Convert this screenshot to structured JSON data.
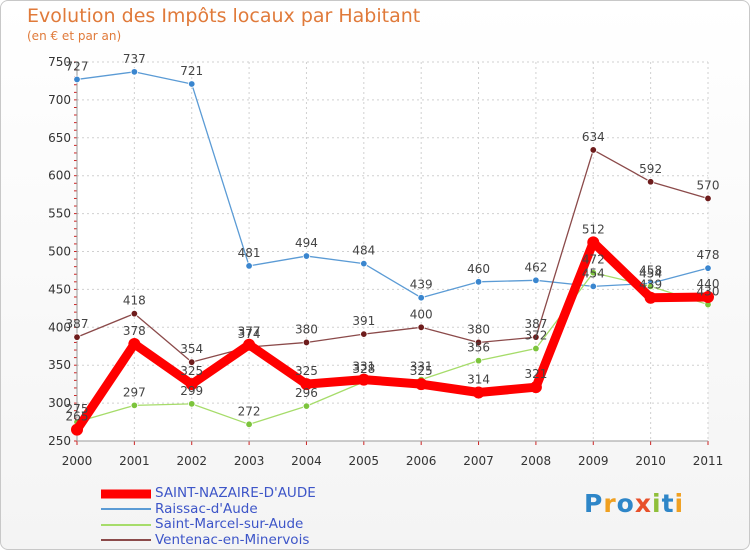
{
  "chart_data": {
    "type": "line",
    "title": "Evolution des Impôts locaux par Habitant",
    "subtitle": "(en € et par an)",
    "x": [
      "2000",
      "2001",
      "2002",
      "2003",
      "2004",
      "2005",
      "2006",
      "2007",
      "2008",
      "2009",
      "2010",
      "2011"
    ],
    "ylim": [
      250,
      750
    ],
    "yticks": [
      250,
      300,
      350,
      400,
      450,
      500,
      550,
      600,
      650,
      700,
      750
    ],
    "grid": true,
    "series": [
      {
        "name": "Raissac-d'Aude",
        "color": "#5b9bd5",
        "marker": "#3a86cf",
        "values": [
          727,
          737,
          721,
          481,
          494,
          484,
          439,
          460,
          462,
          454,
          458,
          478
        ]
      },
      {
        "name": "Saint-Marcel-sur-Aude",
        "color": "#a6dc6a",
        "marker": "#7cc43c",
        "values": [
          275,
          297,
          299,
          272,
          296,
          328,
          331,
          356,
          372,
          472,
          454,
          430
        ]
      },
      {
        "name": "Ventenac-en-Minervois",
        "color": "#8b4a4a",
        "marker": "#6e1c1c",
        "values": [
          387,
          418,
          354,
          374,
          380,
          391,
          400,
          380,
          387,
          634,
          592,
          570
        ]
      },
      {
        "name": "SAINT-NAZAIRE-D'AUDE",
        "color": "#ff0000",
        "marker": "#ff0000",
        "values": [
          265,
          378,
          325,
          377,
          325,
          331,
          325,
          314,
          321,
          512,
          439,
          440
        ]
      }
    ],
    "legend": [
      "SAINT-NAZAIRE-D'AUDE",
      "Raissac-d'Aude",
      "Saint-Marcel-sur-Aude",
      "Ventenac-en-Minervois"
    ],
    "legend_position": "bottom-left"
  },
  "logo_text": "Proxiti"
}
